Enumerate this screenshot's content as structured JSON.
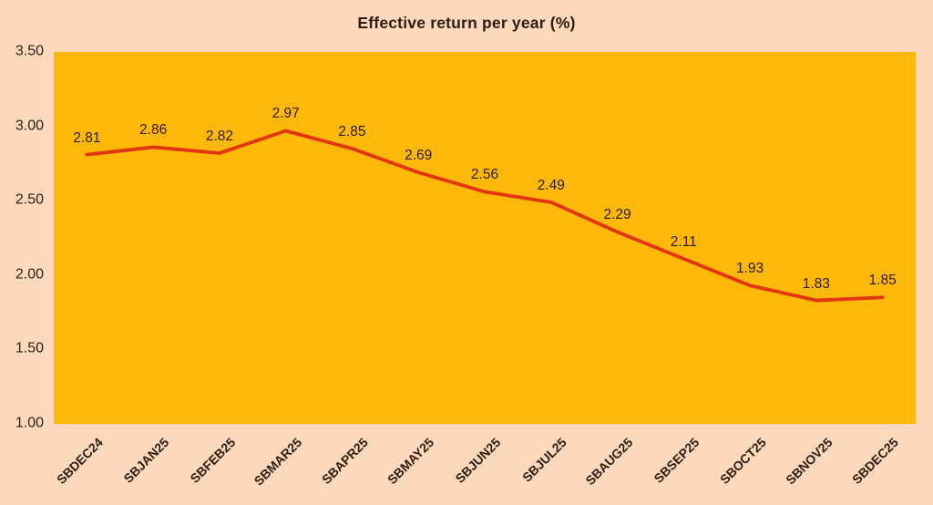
{
  "chart_data": {
    "type": "line",
    "title": "Effective return per year (%)",
    "categories": [
      "SBDEC24",
      "SBJAN25",
      "SBFEB25",
      "SBMAR25",
      "SBAPR25",
      "SBMAY25",
      "SBJUN25",
      "SBJUL25",
      "SBAUG25",
      "SBSEP25",
      "SBOCT25",
      "SBNOV25",
      "SBDEC25"
    ],
    "values": [
      2.81,
      2.86,
      2.82,
      2.97,
      2.85,
      2.69,
      2.56,
      2.49,
      2.29,
      2.11,
      1.93,
      1.83,
      1.85
    ],
    "data_labels": [
      "2.81",
      "2.86",
      "2.82",
      "2.97",
      "2.85",
      "2.69",
      "2.56",
      "2.49",
      "2.29",
      "2.11",
      "1.93",
      "1.83",
      "1.85"
    ],
    "xlabel": "",
    "ylabel": "",
    "ylim": [
      1.0,
      3.5
    ],
    "ytick_values": [
      3.5,
      3.0,
      2.5,
      2.0,
      1.5,
      1.0
    ],
    "ytick_labels": [
      "3.50",
      "3.00",
      "2.50",
      "2.00",
      "1.50",
      "1.00"
    ],
    "grid": false,
    "legend": "none",
    "x_label_rotation_deg": 45,
    "colors": {
      "page_background": "#fcd8bd",
      "plot_background": "#feb809",
      "line": "#e23510",
      "text": "#2e1d0e"
    }
  }
}
